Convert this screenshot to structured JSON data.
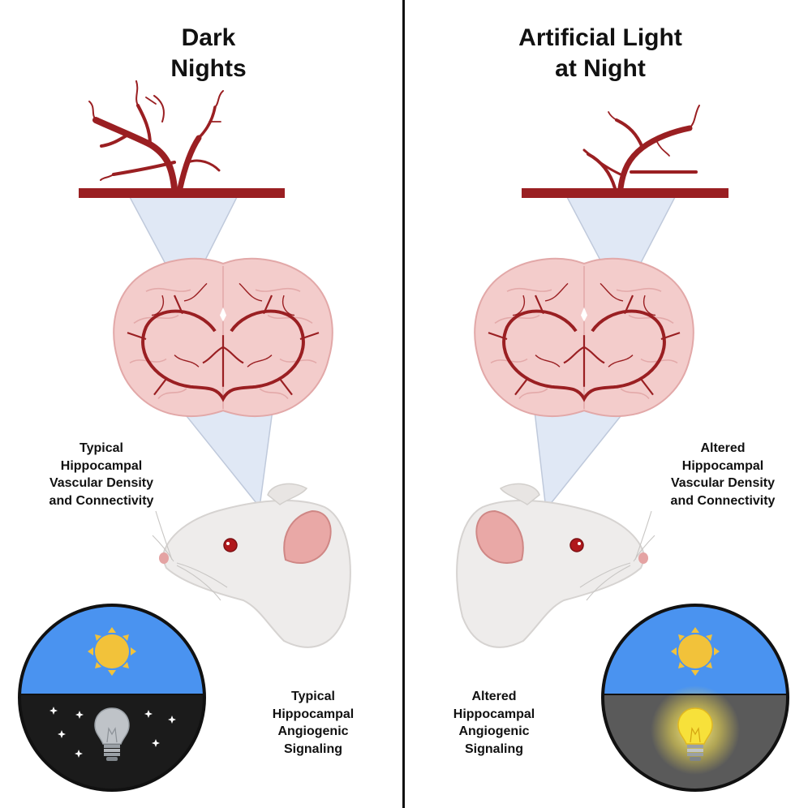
{
  "left": {
    "title_lines": [
      "Dark",
      "Nights"
    ],
    "vascular_label_lines": [
      "Typical",
      "Hippocampal",
      "Vascular Density",
      "and Connectivity"
    ],
    "signaling_label_lines": [
      "Typical",
      "Hippocampal",
      "Angiogenic",
      "Signaling"
    ]
  },
  "right": {
    "title_lines": [
      "Artificial Light",
      "at Night"
    ],
    "vascular_label_lines": [
      "Altered",
      "Hippocampal",
      "Vascular Density",
      "and Connectivity"
    ],
    "signaling_label_lines": [
      "Altered",
      "Hippocampal",
      "Angiogenic",
      "Signaling"
    ]
  },
  "icons": [
    "blood-vessel-icon",
    "brain-icon",
    "mouse-icon",
    "sun-icon",
    "lightbulb-icon",
    "star-icon"
  ],
  "colors": {
    "vessel": "#9a1f22",
    "brain_fill": "#f3cccb",
    "sky_day": "#4a93f0",
    "sky_dark": "#1b1b1b",
    "sky_lit": "#5a5a5a",
    "sun": "#f2c23a",
    "bulb_on": "#f7e13a",
    "bulb_off": "#bfc3c8",
    "zoom_cone": "#dde6f5"
  }
}
